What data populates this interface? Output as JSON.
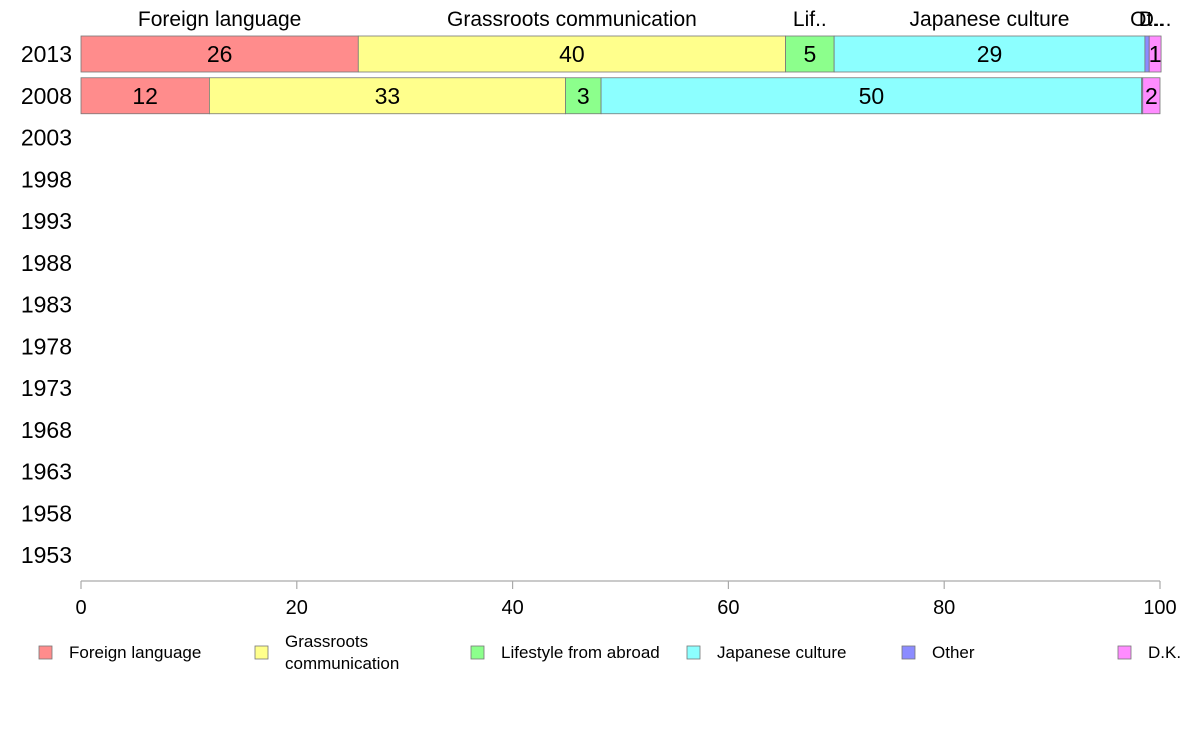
{
  "chart_data": {
    "type": "bar",
    "orientation": "horizontal",
    "stacked": true,
    "categories": [
      "2013",
      "2008",
      "2003",
      "1998",
      "1993",
      "1988",
      "1983",
      "1978",
      "1973",
      "1968",
      "1963",
      "1958",
      "1953"
    ],
    "series": [
      {
        "name": "Foreign language",
        "color": "#ff8c8c",
        "values": [
          25.7,
          11.9,
          null,
          null,
          null,
          null,
          null,
          null,
          null,
          null,
          null,
          null,
          null
        ],
        "labels": [
          "26",
          "12",
          "",
          "",
          "",
          "",
          "",
          "",
          "",
          "",
          "",
          "",
          ""
        ]
      },
      {
        "name": "Grassroots communication",
        "color": "#ffff8c",
        "values": [
          39.6,
          33.0,
          null,
          null,
          null,
          null,
          null,
          null,
          null,
          null,
          null,
          null,
          null
        ],
        "labels": [
          "40",
          "33",
          "",
          "",
          "",
          "",
          "",
          "",
          "",
          "",
          "",
          "",
          ""
        ]
      },
      {
        "name": "Lifestyle from abroad",
        "color": "#8cff8c",
        "values": [
          4.5,
          3.3,
          null,
          null,
          null,
          null,
          null,
          null,
          null,
          null,
          null,
          null,
          null
        ],
        "labels": [
          "5",
          "3",
          "",
          "",
          "",
          "",
          "",
          "",
          "",
          "",
          "",
          "",
          ""
        ]
      },
      {
        "name": "Japanese culture",
        "color": "#8cffff",
        "values": [
          28.8,
          50.1,
          null,
          null,
          null,
          null,
          null,
          null,
          null,
          null,
          null,
          null,
          null
        ],
        "labels": [
          "29",
          "50",
          "",
          "",
          "",
          "",
          "",
          "",
          "",
          "",
          "",
          "",
          ""
        ]
      },
      {
        "name": "Other",
        "color": "#8c8cff",
        "values": [
          0.4,
          0.1,
          null,
          null,
          null,
          null,
          null,
          null,
          null,
          null,
          null,
          null,
          null
        ],
        "labels": [
          "",
          "",
          "",
          "",
          "",
          "",
          "",
          "",
          "",
          "",
          "",
          "",
          ""
        ]
      },
      {
        "name": "D.K.",
        "color": "#ff8cff",
        "values": [
          1.1,
          1.6,
          null,
          null,
          null,
          null,
          null,
          null,
          null,
          null,
          null,
          null,
          null
        ],
        "labels": [
          "1",
          "2",
          "",
          "",
          "",
          "",
          "",
          "",
          "",
          "",
          "",
          "",
          ""
        ]
      }
    ],
    "top_labels": [
      "Foreign language",
      "Grassroots communication",
      "Lif..",
      "Japanese culture",
      "Ot..",
      "D..."
    ],
    "legend_labels": [
      "Foreign language",
      "Grassroots\ncommunication",
      "Lifestyle from abroad",
      "Japanese culture",
      "Other",
      "D.K."
    ],
    "xticks": [
      "0",
      "20",
      "40",
      "60",
      "80",
      "100"
    ],
    "xlim": [
      0,
      100
    ],
    "xlabel": "",
    "ylabel": "",
    "title": "",
    "grid": false,
    "legend_position": "bottom"
  }
}
